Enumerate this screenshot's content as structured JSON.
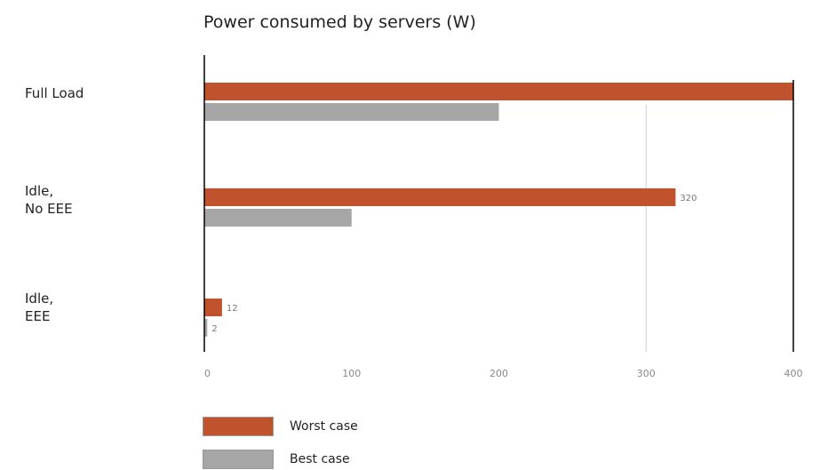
{
  "chart_data": {
    "type": "bar",
    "orientation": "horizontal",
    "title": "Power consumed by servers (W)",
    "categories": [
      "Full Load",
      "Idle,\nNo EEE",
      "Idle,\nEEE"
    ],
    "series": [
      {
        "name": "Worst case",
        "color": "#c0522d",
        "values": [
          400,
          320,
          12
        ]
      },
      {
        "name": "Best case",
        "color": "#a6a6a6",
        "values": [
          200,
          100,
          2
        ]
      }
    ],
    "data_labels": {
      "Worst case": [
        "",
        "320",
        "12"
      ],
      "Best case": [
        "",
        "",
        "2"
      ]
    },
    "xlim": [
      0,
      400
    ],
    "xticks": [
      0,
      100,
      200,
      300,
      400
    ],
    "xtick_labels": [
      "0",
      "100",
      "200",
      "300",
      "400"
    ],
    "grid": "vertical at 300",
    "legend_position": "bottom"
  }
}
